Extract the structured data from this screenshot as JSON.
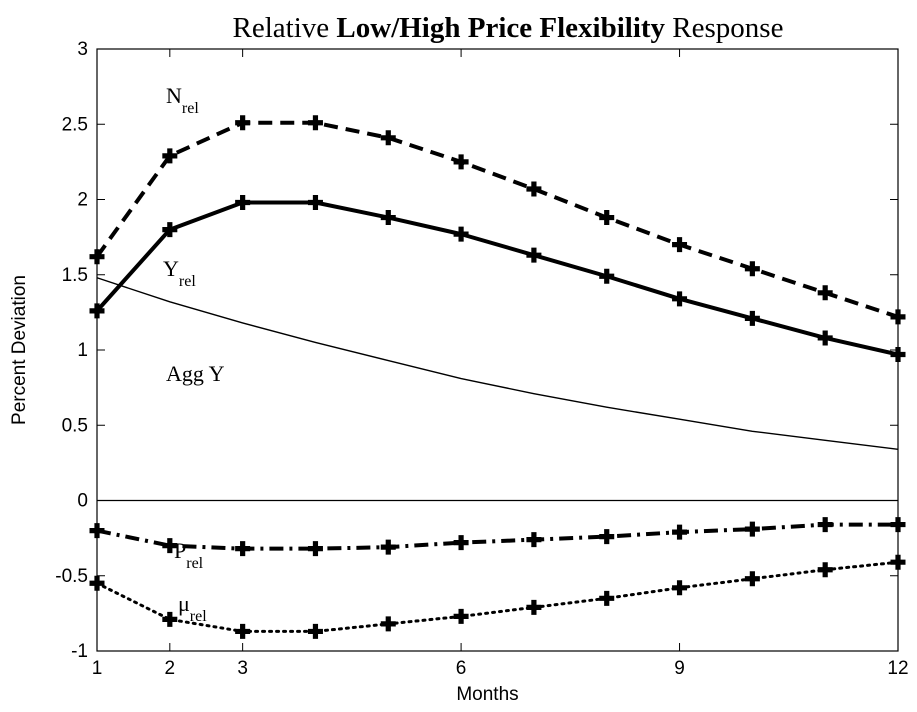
{
  "chart_data": {
    "type": "line",
    "title_parts": [
      {
        "text": "Relative ",
        "bold": false
      },
      {
        "text": "Low/High Price Flexibility",
        "bold": true
      },
      {
        "text": " Response",
        "bold": false
      }
    ],
    "xlabel": "Months",
    "ylabel": "Percent Deviation",
    "xlim": [
      1,
      12
    ],
    "ylim": [
      -1,
      3
    ],
    "xticks": [
      1,
      2,
      3,
      6,
      9,
      12
    ],
    "yticks": [
      -1,
      -0.5,
      0,
      0.5,
      1,
      1.5,
      2,
      2.5,
      3
    ],
    "ytick_labels": [
      "-1",
      "-0.5",
      "0",
      "0.5",
      "1",
      "1.5",
      "2",
      "2.5",
      "3"
    ],
    "zero_line": true,
    "grid": false,
    "series": [
      {
        "name": "N",
        "subscript": "rel",
        "style": "dashed",
        "markers": true,
        "line_weight": "heavy",
        "x": [
          1,
          2,
          3,
          4,
          5,
          6,
          7,
          8,
          9,
          10,
          11,
          12
        ],
        "y": [
          1.62,
          2.29,
          2.51,
          2.51,
          2.41,
          2.25,
          2.07,
          1.88,
          1.7,
          1.54,
          1.38,
          1.22
        ]
      },
      {
        "name": "Y",
        "subscript": "rel",
        "style": "solid",
        "markers": true,
        "line_weight": "heavy",
        "x": [
          1,
          2,
          3,
          4,
          5,
          6,
          7,
          8,
          9,
          10,
          11,
          12
        ],
        "y": [
          1.26,
          1.8,
          1.98,
          1.98,
          1.88,
          1.77,
          1.63,
          1.49,
          1.34,
          1.21,
          1.08,
          0.97
        ]
      },
      {
        "name": "Agg Y",
        "subscript": "",
        "style": "solid",
        "markers": false,
        "line_weight": "thin",
        "x": [
          1,
          2,
          3,
          4,
          5,
          6,
          7,
          8,
          9,
          10,
          11,
          12
        ],
        "y": [
          1.48,
          1.32,
          1.18,
          1.05,
          0.93,
          0.81,
          0.71,
          0.62,
          0.54,
          0.46,
          0.4,
          0.34
        ]
      },
      {
        "name": "P",
        "subscript": "rel",
        "style": "dashdot",
        "markers": true,
        "line_weight": "heavy",
        "x": [
          1,
          2,
          3,
          4,
          5,
          6,
          7,
          8,
          9,
          10,
          11,
          12
        ],
        "y": [
          -0.2,
          -0.3,
          -0.32,
          -0.32,
          -0.31,
          -0.28,
          -0.26,
          -0.24,
          -0.21,
          -0.19,
          -0.16,
          -0.16
        ]
      },
      {
        "name": "μ",
        "subscript": "rel",
        "style": "dotted",
        "markers": true,
        "line_weight": "medium",
        "x": [
          1,
          2,
          3,
          4,
          5,
          6,
          7,
          8,
          9,
          10,
          11,
          12
        ],
        "y": [
          -0.55,
          -0.79,
          -0.87,
          -0.87,
          -0.82,
          -0.77,
          -0.71,
          -0.65,
          -0.58,
          -0.52,
          -0.46,
          -0.41
        ]
      }
    ]
  }
}
